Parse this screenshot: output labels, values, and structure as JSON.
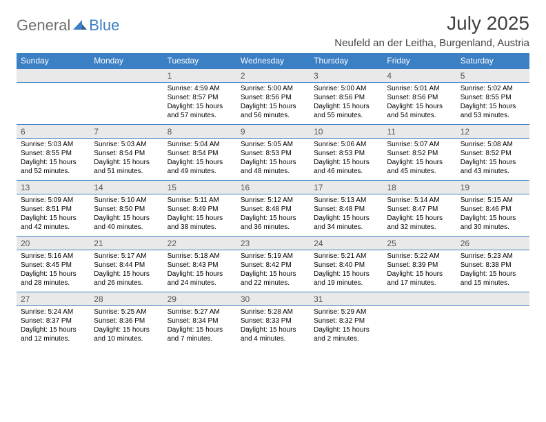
{
  "logo": {
    "text1": "General",
    "text2": "Blue"
  },
  "title": "July 2025",
  "location": "Neufeld an der Leitha, Burgenland, Austria",
  "colors": {
    "header_bg": "#3b7fc4",
    "header_fg": "#ffffff",
    "daynum_bg": "#e9e9e9",
    "daynum_fg": "#555555",
    "page_bg": "#ffffff",
    "text": "#000000",
    "logo_gray": "#6f6f6f",
    "logo_blue": "#3b7fc4"
  },
  "weekday_labels": [
    "Sunday",
    "Monday",
    "Tuesday",
    "Wednesday",
    "Thursday",
    "Friday",
    "Saturday"
  ],
  "weeks": [
    [
      {
        "day": "",
        "sunrise": "",
        "sunset": "",
        "daylight": ""
      },
      {
        "day": "",
        "sunrise": "",
        "sunset": "",
        "daylight": ""
      },
      {
        "day": "1",
        "sunrise": "Sunrise: 4:59 AM",
        "sunset": "Sunset: 8:57 PM",
        "daylight": "Daylight: 15 hours and 57 minutes."
      },
      {
        "day": "2",
        "sunrise": "Sunrise: 5:00 AM",
        "sunset": "Sunset: 8:56 PM",
        "daylight": "Daylight: 15 hours and 56 minutes."
      },
      {
        "day": "3",
        "sunrise": "Sunrise: 5:00 AM",
        "sunset": "Sunset: 8:56 PM",
        "daylight": "Daylight: 15 hours and 55 minutes."
      },
      {
        "day": "4",
        "sunrise": "Sunrise: 5:01 AM",
        "sunset": "Sunset: 8:56 PM",
        "daylight": "Daylight: 15 hours and 54 minutes."
      },
      {
        "day": "5",
        "sunrise": "Sunrise: 5:02 AM",
        "sunset": "Sunset: 8:55 PM",
        "daylight": "Daylight: 15 hours and 53 minutes."
      }
    ],
    [
      {
        "day": "6",
        "sunrise": "Sunrise: 5:03 AM",
        "sunset": "Sunset: 8:55 PM",
        "daylight": "Daylight: 15 hours and 52 minutes."
      },
      {
        "day": "7",
        "sunrise": "Sunrise: 5:03 AM",
        "sunset": "Sunset: 8:54 PM",
        "daylight": "Daylight: 15 hours and 51 minutes."
      },
      {
        "day": "8",
        "sunrise": "Sunrise: 5:04 AM",
        "sunset": "Sunset: 8:54 PM",
        "daylight": "Daylight: 15 hours and 49 minutes."
      },
      {
        "day": "9",
        "sunrise": "Sunrise: 5:05 AM",
        "sunset": "Sunset: 8:53 PM",
        "daylight": "Daylight: 15 hours and 48 minutes."
      },
      {
        "day": "10",
        "sunrise": "Sunrise: 5:06 AM",
        "sunset": "Sunset: 8:53 PM",
        "daylight": "Daylight: 15 hours and 46 minutes."
      },
      {
        "day": "11",
        "sunrise": "Sunrise: 5:07 AM",
        "sunset": "Sunset: 8:52 PM",
        "daylight": "Daylight: 15 hours and 45 minutes."
      },
      {
        "day": "12",
        "sunrise": "Sunrise: 5:08 AM",
        "sunset": "Sunset: 8:52 PM",
        "daylight": "Daylight: 15 hours and 43 minutes."
      }
    ],
    [
      {
        "day": "13",
        "sunrise": "Sunrise: 5:09 AM",
        "sunset": "Sunset: 8:51 PM",
        "daylight": "Daylight: 15 hours and 42 minutes."
      },
      {
        "day": "14",
        "sunrise": "Sunrise: 5:10 AM",
        "sunset": "Sunset: 8:50 PM",
        "daylight": "Daylight: 15 hours and 40 minutes."
      },
      {
        "day": "15",
        "sunrise": "Sunrise: 5:11 AM",
        "sunset": "Sunset: 8:49 PM",
        "daylight": "Daylight: 15 hours and 38 minutes."
      },
      {
        "day": "16",
        "sunrise": "Sunrise: 5:12 AM",
        "sunset": "Sunset: 8:48 PM",
        "daylight": "Daylight: 15 hours and 36 minutes."
      },
      {
        "day": "17",
        "sunrise": "Sunrise: 5:13 AM",
        "sunset": "Sunset: 8:48 PM",
        "daylight": "Daylight: 15 hours and 34 minutes."
      },
      {
        "day": "18",
        "sunrise": "Sunrise: 5:14 AM",
        "sunset": "Sunset: 8:47 PM",
        "daylight": "Daylight: 15 hours and 32 minutes."
      },
      {
        "day": "19",
        "sunrise": "Sunrise: 5:15 AM",
        "sunset": "Sunset: 8:46 PM",
        "daylight": "Daylight: 15 hours and 30 minutes."
      }
    ],
    [
      {
        "day": "20",
        "sunrise": "Sunrise: 5:16 AM",
        "sunset": "Sunset: 8:45 PM",
        "daylight": "Daylight: 15 hours and 28 minutes."
      },
      {
        "day": "21",
        "sunrise": "Sunrise: 5:17 AM",
        "sunset": "Sunset: 8:44 PM",
        "daylight": "Daylight: 15 hours and 26 minutes."
      },
      {
        "day": "22",
        "sunrise": "Sunrise: 5:18 AM",
        "sunset": "Sunset: 8:43 PM",
        "daylight": "Daylight: 15 hours and 24 minutes."
      },
      {
        "day": "23",
        "sunrise": "Sunrise: 5:19 AM",
        "sunset": "Sunset: 8:42 PM",
        "daylight": "Daylight: 15 hours and 22 minutes."
      },
      {
        "day": "24",
        "sunrise": "Sunrise: 5:21 AM",
        "sunset": "Sunset: 8:40 PM",
        "daylight": "Daylight: 15 hours and 19 minutes."
      },
      {
        "day": "25",
        "sunrise": "Sunrise: 5:22 AM",
        "sunset": "Sunset: 8:39 PM",
        "daylight": "Daylight: 15 hours and 17 minutes."
      },
      {
        "day": "26",
        "sunrise": "Sunrise: 5:23 AM",
        "sunset": "Sunset: 8:38 PM",
        "daylight": "Daylight: 15 hours and 15 minutes."
      }
    ],
    [
      {
        "day": "27",
        "sunrise": "Sunrise: 5:24 AM",
        "sunset": "Sunset: 8:37 PM",
        "daylight": "Daylight: 15 hours and 12 minutes."
      },
      {
        "day": "28",
        "sunrise": "Sunrise: 5:25 AM",
        "sunset": "Sunset: 8:36 PM",
        "daylight": "Daylight: 15 hours and 10 minutes."
      },
      {
        "day": "29",
        "sunrise": "Sunrise: 5:27 AM",
        "sunset": "Sunset: 8:34 PM",
        "daylight": "Daylight: 15 hours and 7 minutes."
      },
      {
        "day": "30",
        "sunrise": "Sunrise: 5:28 AM",
        "sunset": "Sunset: 8:33 PM",
        "daylight": "Daylight: 15 hours and 4 minutes."
      },
      {
        "day": "31",
        "sunrise": "Sunrise: 5:29 AM",
        "sunset": "Sunset: 8:32 PM",
        "daylight": "Daylight: 15 hours and 2 minutes."
      },
      {
        "day": "",
        "sunrise": "",
        "sunset": "",
        "daylight": ""
      },
      {
        "day": "",
        "sunrise": "",
        "sunset": "",
        "daylight": ""
      }
    ]
  ]
}
